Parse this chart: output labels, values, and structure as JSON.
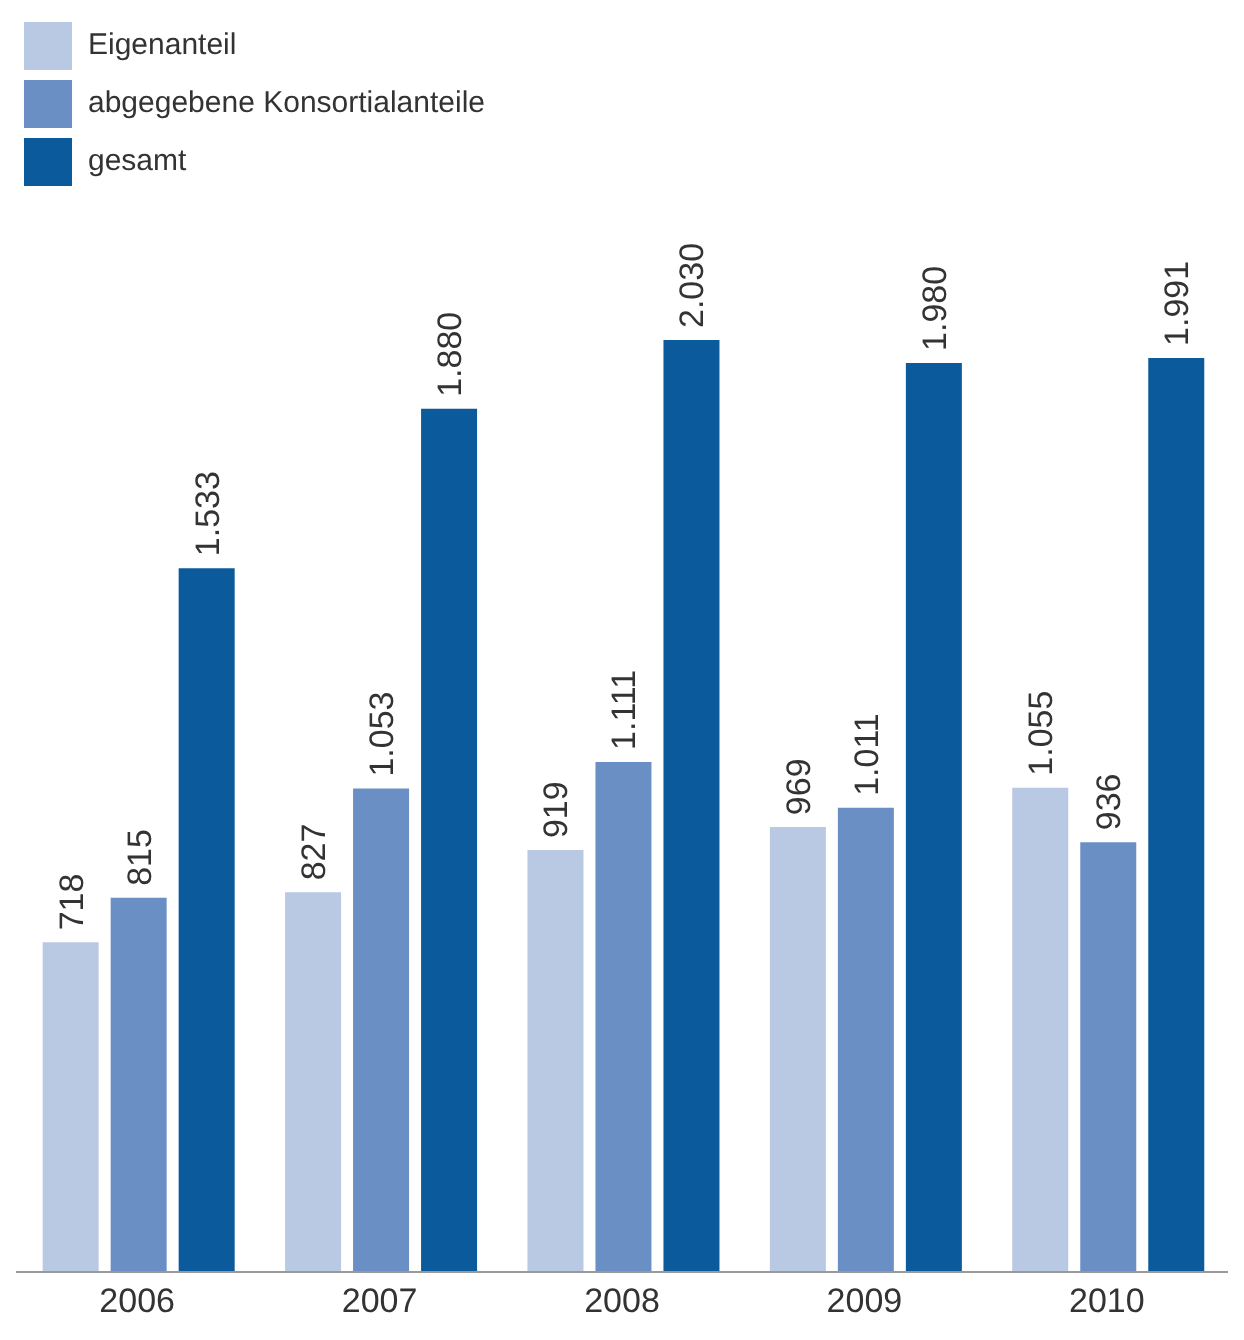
{
  "chart_data": {
    "type": "bar",
    "categories": [
      "2006",
      "2007",
      "2008",
      "2009",
      "2010"
    ],
    "series": [
      {
        "name": "Eigenanteil",
        "color": "#b9c8e3",
        "values": [
          718,
          827,
          919,
          969,
          1055
        ],
        "value_labels": [
          "718",
          "827",
          "919",
          "969",
          "1.055"
        ]
      },
      {
        "name": "abgegebene Konsortialanteile",
        "color": "#6a8fc5",
        "values": [
          815,
          1053,
          1111,
          1011,
          936
        ],
        "value_labels": [
          "815",
          "1.053",
          "1.111",
          "1.011",
          "936"
        ]
      },
      {
        "name": "gesamt",
        "color": "#0a5a9c",
        "values": [
          1533,
          1880,
          2030,
          1980,
          1991
        ],
        "value_labels": [
          "1.533",
          "1.880",
          "2.030",
          "1.980",
          "1.991"
        ]
      }
    ],
    "legend": "top left",
    "grid": false
  }
}
